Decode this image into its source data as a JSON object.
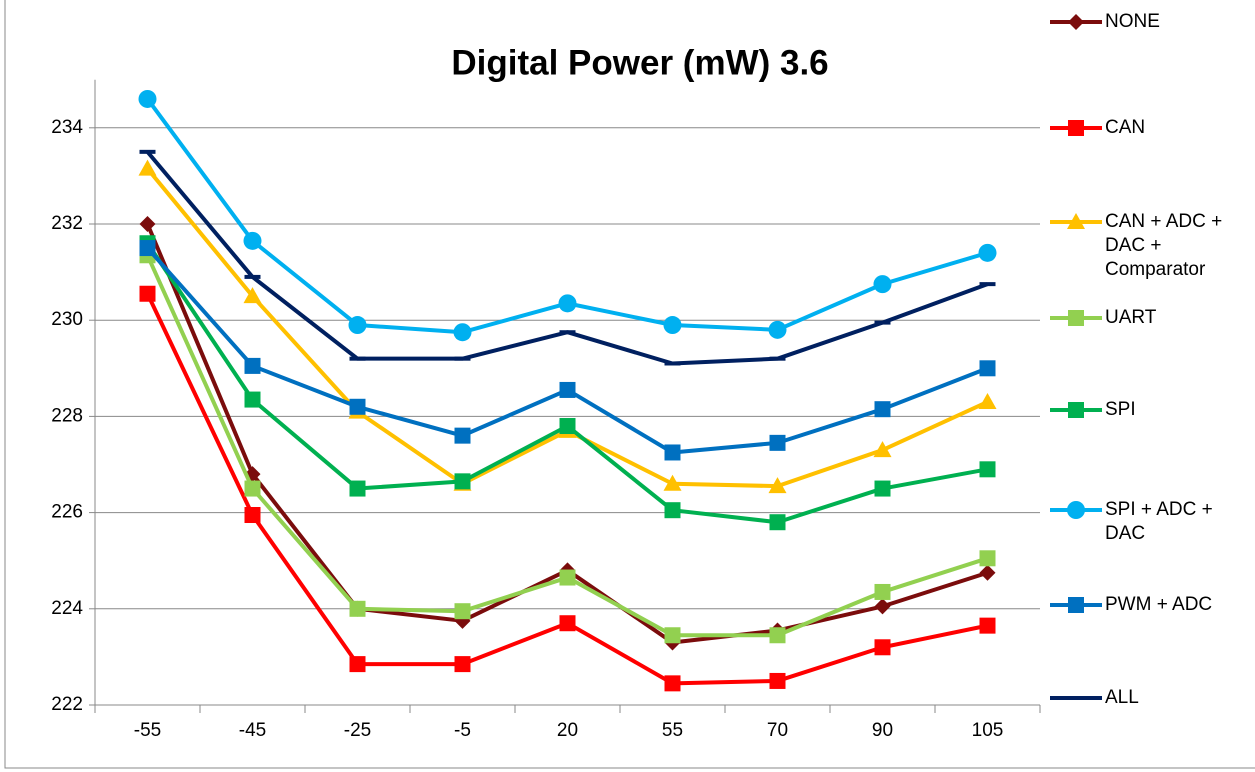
{
  "chart_data": {
    "type": "line",
    "title": "Digital Power (mW) 3.6",
    "categories": [
      "-55",
      "-45",
      "-25",
      "-5",
      "20",
      "55",
      "70",
      "90",
      "105"
    ],
    "ylim": [
      222,
      235
    ],
    "yticks": [
      222,
      224,
      226,
      228,
      230,
      232,
      234
    ],
    "grid": true,
    "legend": "right",
    "series": [
      {
        "name": "NONE",
        "color": "#7b0c0c",
        "marker": "diamond",
        "values": [
          232.0,
          226.8,
          224.0,
          223.75,
          224.8,
          223.3,
          223.55,
          224.05,
          224.75
        ]
      },
      {
        "name": "CAN",
        "color": "#ff0000",
        "marker": "square",
        "values": [
          230.55,
          225.95,
          222.85,
          222.85,
          223.7,
          222.45,
          222.5,
          223.2,
          223.65
        ]
      },
      {
        "name": "CAN + ADC + DAC + Comparator",
        "color": "#ffc000",
        "marker": "triangle",
        "values": [
          233.15,
          230.5,
          228.1,
          226.6,
          227.7,
          226.6,
          226.55,
          227.3,
          228.3
        ]
      },
      {
        "name": "UART",
        "color": "#92d050",
        "marker": "square",
        "values": [
          231.35,
          226.5,
          224.0,
          223.95,
          224.65,
          223.45,
          223.45,
          224.35,
          225.05
        ]
      },
      {
        "name": "SPI",
        "color": "#00b050",
        "marker": "square",
        "values": [
          231.6,
          228.35,
          226.5,
          226.65,
          227.8,
          226.05,
          225.8,
          226.5,
          226.9
        ]
      },
      {
        "name": "SPI + ADC + DAC",
        "color": "#00b0f0",
        "marker": "circle",
        "values": [
          234.6,
          231.65,
          229.9,
          229.75,
          230.35,
          229.9,
          229.8,
          230.75,
          231.4
        ]
      },
      {
        "name": "PWM + ADC",
        "color": "#0070c0",
        "marker": "square",
        "values": [
          231.5,
          229.05,
          228.2,
          227.6,
          228.55,
          227.25,
          227.45,
          228.15,
          229.0
        ]
      },
      {
        "name": "ALL",
        "color": "#002060",
        "marker": "dash",
        "values": [
          233.5,
          230.9,
          229.2,
          229.2,
          229.75,
          229.1,
          229.2,
          229.95,
          230.75
        ]
      }
    ]
  }
}
